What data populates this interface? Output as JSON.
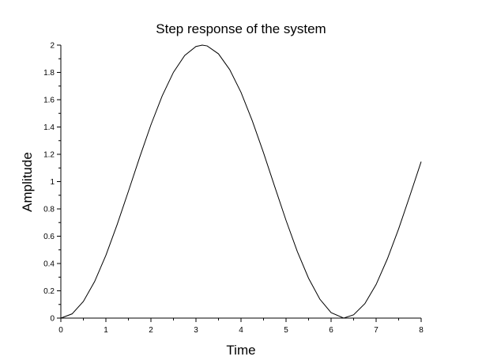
{
  "chart_data": {
    "type": "line",
    "title": "Step response of the system",
    "xlabel": "Time",
    "ylabel": "Amplitude",
    "xlim": [
      0,
      8
    ],
    "ylim": [
      0,
      2
    ],
    "x_ticks": [
      "0",
      "1",
      "2",
      "3",
      "4",
      "5",
      "6",
      "7",
      "8"
    ],
    "y_ticks": [
      "0",
      "0.2",
      "0.4",
      "0.6",
      "0.8",
      "1",
      "1.2",
      "1.4",
      "1.6",
      "1.8",
      "2"
    ],
    "grid": false,
    "legend": "none",
    "series": [
      {
        "x": [
          0,
          0.25,
          0.5,
          0.75,
          1,
          1.25,
          1.5,
          1.75,
          2,
          2.25,
          2.5,
          2.75,
          3,
          3.14,
          3.25,
          3.5,
          3.75,
          4,
          4.25,
          4.5,
          4.75,
          5,
          5.25,
          5.5,
          5.75,
          6,
          6.28,
          6.5,
          6.75,
          7,
          7.25,
          7.5,
          7.75,
          8
        ],
        "y": [
          0,
          0.031,
          0.122,
          0.268,
          0.46,
          0.685,
          0.929,
          1.178,
          1.416,
          1.628,
          1.801,
          1.924,
          1.99,
          2.0,
          1.994,
          1.936,
          1.82,
          1.654,
          1.446,
          1.211,
          0.962,
          0.716,
          0.488,
          0.292,
          0.139,
          0.04,
          0.0,
          0.024,
          0.106,
          0.246,
          0.434,
          0.654,
          0.897,
          1.146
        ]
      }
    ]
  }
}
